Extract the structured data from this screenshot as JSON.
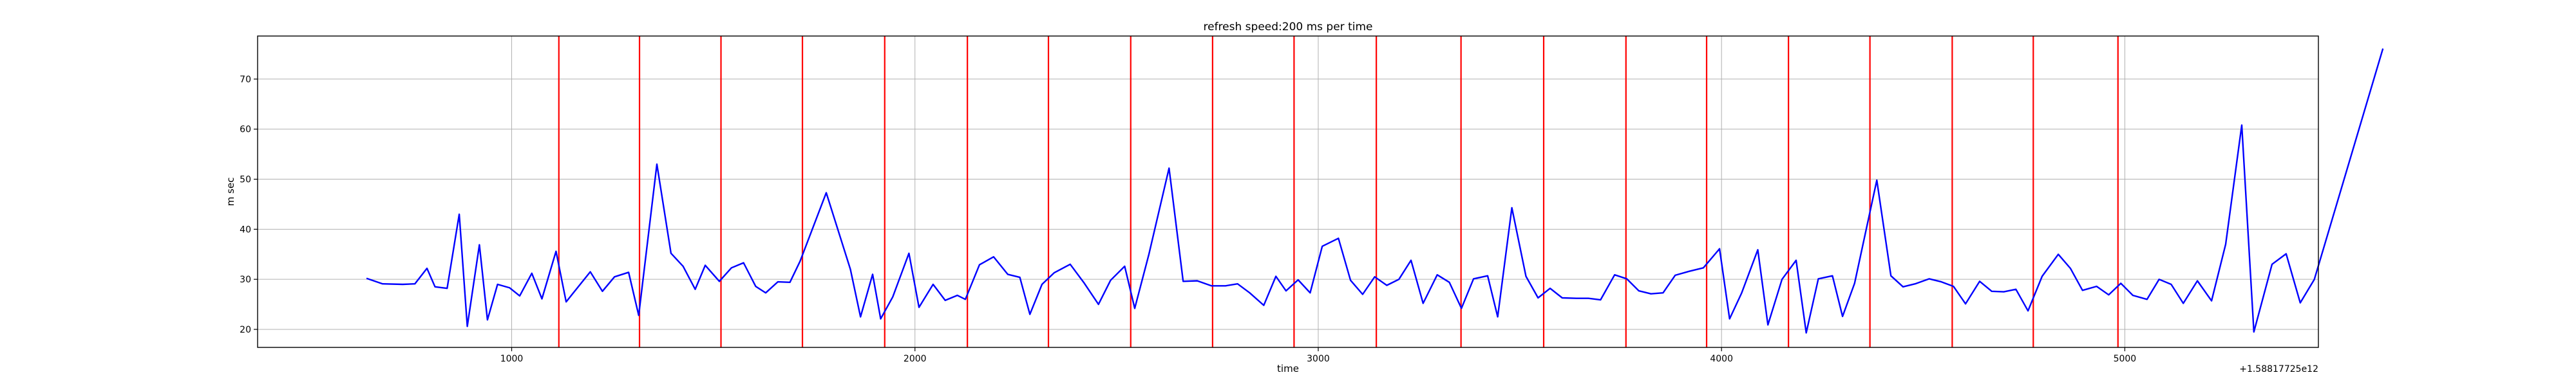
{
  "chart_data": {
    "type": "line",
    "title": "refresh speed:200 ms per time",
    "xlabel": "time",
    "ylabel": "m sec",
    "offset_text": "+1.58817725e12",
    "xlim": [
      370,
      5480
    ],
    "ylim": [
      16.4,
      78.6
    ],
    "x_ticks": [
      {
        "value": 1000,
        "label": "1000"
      },
      {
        "value": 2000,
        "label": "2000"
      },
      {
        "value": 3000,
        "label": "3000"
      },
      {
        "value": 4000,
        "label": "4000"
      },
      {
        "value": 5000,
        "label": "5000"
      }
    ],
    "y_ticks": [
      {
        "value": 20,
        "label": "20"
      },
      {
        "value": 30,
        "label": "30"
      },
      {
        "value": 40,
        "label": "40"
      },
      {
        "value": 50,
        "label": "50"
      },
      {
        "value": 60,
        "label": "60"
      },
      {
        "value": 70,
        "label": "70"
      }
    ],
    "grid": true,
    "line_color": "#0000ff",
    "vline_color": "#ff0000",
    "vlines": [
      1117,
      1317,
      1519,
      1721,
      1925,
      2130,
      2331,
      2535,
      2738,
      2940,
      3144,
      3354,
      3559,
      3763,
      3963,
      4166,
      4368,
      4572,
      4773,
      4983
    ],
    "series": [
      {
        "values": [
          [
            640,
            30.2
          ],
          [
            680,
            29.1
          ],
          [
            730,
            29.0
          ],
          [
            760,
            29.1
          ],
          [
            790,
            32.2
          ],
          [
            810,
            28.5
          ],
          [
            840,
            28.2
          ],
          [
            870,
            43.0
          ],
          [
            890,
            20.6
          ],
          [
            920,
            36.9
          ],
          [
            940,
            21.9
          ],
          [
            965,
            29.0
          ],
          [
            995,
            28.3
          ],
          [
            1020,
            26.7
          ],
          [
            1050,
            31.2
          ],
          [
            1075,
            26.1
          ],
          [
            1110,
            35.6
          ],
          [
            1135,
            25.5
          ],
          [
            1160,
            28.0
          ],
          [
            1195,
            31.5
          ],
          [
            1225,
            27.6
          ],
          [
            1255,
            30.5
          ],
          [
            1290,
            31.4
          ],
          [
            1315,
            22.8
          ],
          [
            1360,
            53.0
          ],
          [
            1395,
            35.2
          ],
          [
            1425,
            32.6
          ],
          [
            1455,
            28.0
          ],
          [
            1480,
            32.8
          ],
          [
            1515,
            29.6
          ],
          [
            1545,
            32.3
          ],
          [
            1575,
            33.3
          ],
          [
            1605,
            28.6
          ],
          [
            1630,
            27.3
          ],
          [
            1660,
            29.5
          ],
          [
            1690,
            29.4
          ],
          [
            1715,
            33.6
          ],
          [
            1780,
            47.3
          ],
          [
            1840,
            32.0
          ],
          [
            1865,
            22.5
          ],
          [
            1895,
            31.0
          ],
          [
            1915,
            22.1
          ],
          [
            1945,
            26.5
          ],
          [
            1985,
            35.2
          ],
          [
            2010,
            24.4
          ],
          [
            2045,
            29.0
          ],
          [
            2075,
            25.8
          ],
          [
            2105,
            26.8
          ],
          [
            2125,
            26.0
          ],
          [
            2160,
            32.9
          ],
          [
            2195,
            34.5
          ],
          [
            2230,
            31.0
          ],
          [
            2260,
            30.4
          ],
          [
            2285,
            23.0
          ],
          [
            2315,
            29.0
          ],
          [
            2345,
            31.3
          ],
          [
            2385,
            33.0
          ],
          [
            2420,
            29.2
          ],
          [
            2455,
            25.0
          ],
          [
            2485,
            29.8
          ],
          [
            2520,
            32.6
          ],
          [
            2545,
            24.2
          ],
          [
            2580,
            35.0
          ],
          [
            2630,
            52.2
          ],
          [
            2665,
            29.6
          ],
          [
            2700,
            29.7
          ],
          [
            2735,
            28.7
          ],
          [
            2770,
            28.7
          ],
          [
            2800,
            29.1
          ],
          [
            2830,
            27.3
          ],
          [
            2865,
            24.8
          ],
          [
            2895,
            30.6
          ],
          [
            2920,
            27.7
          ],
          [
            2950,
            29.9
          ],
          [
            2980,
            27.3
          ],
          [
            3010,
            36.6
          ],
          [
            3050,
            38.2
          ],
          [
            3080,
            29.8
          ],
          [
            3110,
            27.0
          ],
          [
            3140,
            30.5
          ],
          [
            3170,
            28.8
          ],
          [
            3200,
            30.0
          ],
          [
            3230,
            33.8
          ],
          [
            3260,
            25.2
          ],
          [
            3295,
            30.9
          ],
          [
            3325,
            29.4
          ],
          [
            3355,
            24.2
          ],
          [
            3385,
            30.1
          ],
          [
            3420,
            30.7
          ],
          [
            3445,
            22.5
          ],
          [
            3480,
            44.3
          ],
          [
            3515,
            30.6
          ],
          [
            3545,
            26.3
          ],
          [
            3575,
            28.2
          ],
          [
            3605,
            26.3
          ],
          [
            3640,
            26.2
          ],
          [
            3670,
            26.2
          ],
          [
            3700,
            25.9
          ],
          [
            3735,
            30.9
          ],
          [
            3765,
            30.1
          ],
          [
            3795,
            27.7
          ],
          [
            3825,
            27.1
          ],
          [
            3855,
            27.3
          ],
          [
            3885,
            30.8
          ],
          [
            3920,
            31.6
          ],
          [
            3955,
            32.3
          ],
          [
            3995,
            36.1
          ],
          [
            4020,
            22.1
          ],
          [
            4050,
            27.3
          ],
          [
            4090,
            35.9
          ],
          [
            4115,
            20.9
          ],
          [
            4150,
            30.0
          ],
          [
            4185,
            33.8
          ],
          [
            4210,
            19.3
          ],
          [
            4240,
            30.1
          ],
          [
            4275,
            30.7
          ],
          [
            4300,
            22.6
          ],
          [
            4330,
            29.2
          ],
          [
            4385,
            49.8
          ],
          [
            4420,
            30.7
          ],
          [
            4450,
            28.5
          ],
          [
            4480,
            29.1
          ],
          [
            4515,
            30.1
          ],
          [
            4545,
            29.5
          ],
          [
            4575,
            28.6
          ],
          [
            4605,
            25.1
          ],
          [
            4640,
            29.6
          ],
          [
            4670,
            27.6
          ],
          [
            4700,
            27.5
          ],
          [
            4730,
            28.0
          ],
          [
            4760,
            23.7
          ],
          [
            4795,
            30.6
          ],
          [
            4835,
            35.0
          ],
          [
            4865,
            32.2
          ],
          [
            4895,
            27.8
          ],
          [
            4930,
            28.6
          ],
          [
            4960,
            26.9
          ],
          [
            4990,
            29.2
          ],
          [
            5020,
            26.8
          ],
          [
            5055,
            26.0
          ],
          [
            5085,
            30.0
          ],
          [
            5115,
            29.0
          ],
          [
            5145,
            25.2
          ],
          [
            5180,
            29.7
          ],
          [
            5215,
            25.7
          ],
          [
            5250,
            37.0
          ],
          [
            5290,
            60.8
          ],
          [
            5320,
            19.5
          ],
          [
            5365,
            33.0
          ],
          [
            5400,
            35.1
          ],
          [
            5435,
            25.3
          ],
          [
            5470,
            30.0
          ],
          [
            5640,
            76.1
          ]
        ]
      }
    ]
  }
}
